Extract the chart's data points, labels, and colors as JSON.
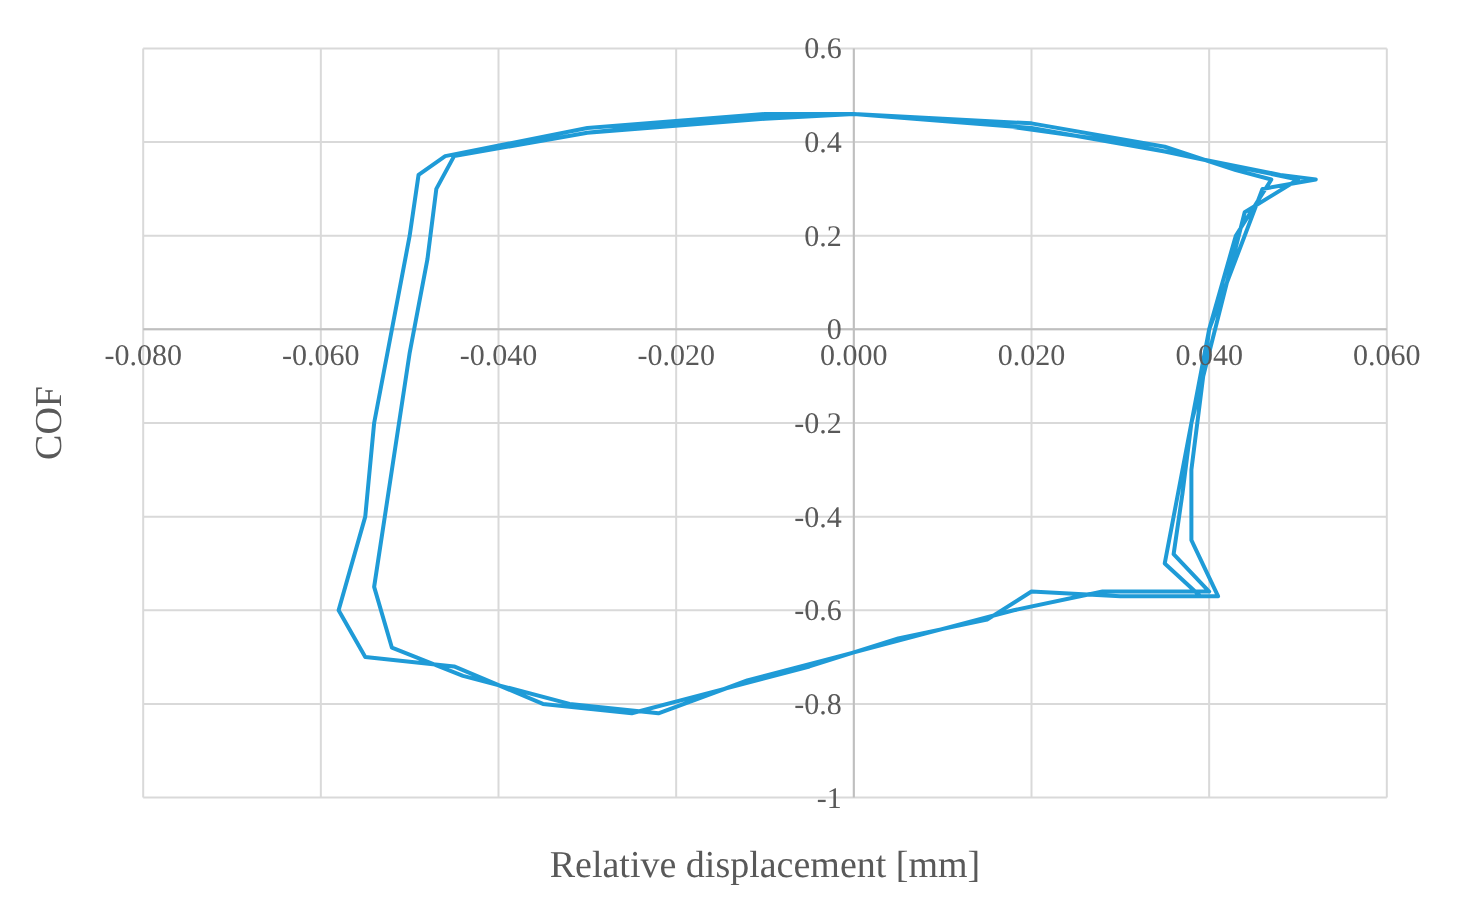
{
  "chart_data": {
    "type": "line",
    "xlabel": "Relative displacement [mm]",
    "ylabel": "COF",
    "xlim": [
      -0.08,
      0.06
    ],
    "ylim": [
      -1,
      0.6
    ],
    "xticks": [
      {
        "value": -0.08,
        "label": "-0.080"
      },
      {
        "value": -0.06,
        "label": "-0.060"
      },
      {
        "value": -0.04,
        "label": "-0.040"
      },
      {
        "value": -0.02,
        "label": "-0.020"
      },
      {
        "value": 0,
        "label": "0.000"
      },
      {
        "value": 0.02,
        "label": "0.020"
      },
      {
        "value": 0.04,
        "label": "0.040"
      },
      {
        "value": 0.06,
        "label": "0.060"
      }
    ],
    "yticks": [
      -1,
      -0.8,
      -0.6,
      -0.4,
      -0.2,
      0,
      0.2,
      0.4,
      0.6
    ],
    "grid": true,
    "marker": "none",
    "line_style": "solid",
    "series": [
      {
        "color": "#1f9bd7",
        "x": [
          -0.045,
          -0.03,
          -0.015,
          0.0,
          0.015,
          0.03,
          0.04,
          0.048,
          0.052,
          0.046,
          0.044,
          0.042,
          0.04,
          0.039,
          0.038,
          0.038,
          0.041,
          0.03,
          0.02,
          0.015,
          0.005,
          -0.005,
          -0.015,
          -0.025,
          -0.035,
          -0.045,
          -0.055,
          -0.058,
          -0.055,
          -0.054,
          -0.052,
          -0.05,
          -0.049,
          -0.046,
          -0.03,
          -0.01,
          0.0,
          0.02,
          0.035,
          0.045,
          0.05,
          0.044,
          0.042,
          0.04,
          0.038,
          0.037,
          0.036,
          0.04,
          0.028,
          0.018,
          0.008,
          -0.002,
          -0.012,
          -0.022,
          -0.032,
          -0.044,
          -0.052,
          -0.054,
          -0.052,
          -0.05,
          -0.048,
          -0.047,
          -0.045,
          -0.03,
          -0.01,
          0.0,
          0.02,
          0.035,
          0.043,
          0.047,
          0.043,
          0.04,
          0.038,
          0.036,
          0.035,
          0.039
        ],
        "values": [
          0.37,
          0.42,
          0.45,
          0.46,
          0.44,
          0.4,
          0.36,
          0.33,
          0.32,
          0.3,
          0.2,
          0.1,
          0.0,
          -0.15,
          -0.3,
          -0.45,
          -0.57,
          -0.57,
          -0.56,
          -0.62,
          -0.66,
          -0.72,
          -0.77,
          -0.82,
          -0.8,
          -0.72,
          -0.7,
          -0.6,
          -0.4,
          -0.2,
          0.0,
          0.2,
          0.33,
          0.37,
          0.43,
          0.46,
          0.46,
          0.43,
          0.38,
          0.34,
          0.32,
          0.25,
          0.1,
          -0.05,
          -0.2,
          -0.35,
          -0.48,
          -0.56,
          -0.56,
          -0.6,
          -0.65,
          -0.7,
          -0.75,
          -0.82,
          -0.8,
          -0.74,
          -0.68,
          -0.55,
          -0.3,
          -0.05,
          0.15,
          0.3,
          0.37,
          0.42,
          0.45,
          0.46,
          0.44,
          0.39,
          0.34,
          0.32,
          0.2,
          0.0,
          -0.2,
          -0.4,
          -0.5,
          -0.57
        ]
      }
    ]
  }
}
